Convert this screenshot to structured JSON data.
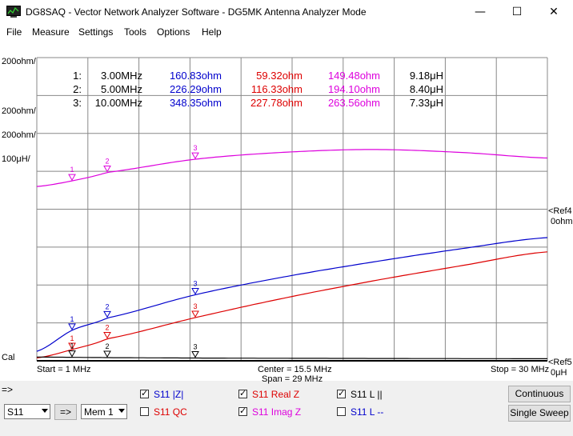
{
  "window": {
    "title": "DG8SAQ  -  Vector Network Analyzer Software - DG5MK Antenna Analyzer Mode",
    "icon": "network-analyzer-app-icon",
    "controls": {
      "minimize": "—",
      "maximize": "☐",
      "close": "✕"
    }
  },
  "menu": [
    "File",
    "Measure",
    "Settings",
    "Tools",
    "Options",
    "Help"
  ],
  "scale_labels": {
    "z_mag": "200ohm/",
    "real_z": "200ohm/",
    "imag_z": "200ohm/",
    "inductance": "100μH/",
    "cal": "Cal",
    "ref_top": "<Ref4",
    "ref_top_value": "0ohm",
    "ref_bottom": "<Ref5",
    "ref_bottom_value": "0μH"
  },
  "markers_table": [
    {
      "id": "1:",
      "freq": "3.00MHz",
      "z_mag": "160.83ohm",
      "real_z": "59.32ohm",
      "imag_z": "149.48ohm",
      "inductance": "9.18μH"
    },
    {
      "id": "2:",
      "freq": "5.00MHz",
      "z_mag": "226.29ohm",
      "real_z": "116.33ohm",
      "imag_z": "194.10ohm",
      "inductance": "8.40μH"
    },
    {
      "id": "3:",
      "freq": "10.00MHz",
      "z_mag": "348.35ohm",
      "real_z": "227.78ohm",
      "imag_z": "263.56ohm",
      "inductance": "7.33μH"
    }
  ],
  "marker_flags": [
    "1",
    "2",
    "3"
  ],
  "sweep": {
    "start": "Start = 1 MHz",
    "center": "Center = 15.5 MHz",
    "span": "Span = 29 MHz",
    "stop": "Stop = 30 MHz"
  },
  "prompt": "=>",
  "traces": [
    {
      "label": "S11  |Z|",
      "checked": true,
      "color": "#0000cc"
    },
    {
      "label": "S11  Real Z",
      "checked": true,
      "color": "#dd0000"
    },
    {
      "label": "S11  L ||",
      "checked": true,
      "color": "#000000"
    },
    {
      "label": "S11  QC",
      "checked": false,
      "color": "#dd0000"
    },
    {
      "label": "S11  Imag Z",
      "checked": true,
      "color": "#dd00dd"
    },
    {
      "label": "S11  L --",
      "checked": false,
      "color": "#0000cc"
    }
  ],
  "controls": {
    "port_select": "S11",
    "arrow_button": "=>",
    "memory_select": "Mem 1",
    "continuous_button": "Continuous",
    "single_sweep_button": "Single Sweep"
  },
  "colors": {
    "z_mag": "#0000cc",
    "real_z": "#dd0000",
    "imag_z": "#dd00dd",
    "inductance": "#000000",
    "grid": "#888888"
  },
  "chart_data": {
    "type": "line",
    "x_unit": "MHz",
    "xlim": [
      1,
      30
    ],
    "markers_mhz": [
      3,
      5,
      10
    ],
    "series": [
      {
        "name": "S11 |Z|",
        "scale_per_div": "200ohm",
        "x": [
          1,
          3,
          5,
          10,
          15,
          20,
          25,
          30
        ],
        "values": [
          50,
          160.83,
          226.29,
          348.35,
          442,
          520,
          590,
          650
        ]
      },
      {
        "name": "S11 Real Z",
        "scale_per_div": "200ohm",
        "x": [
          1,
          3,
          5,
          10,
          15,
          20,
          25,
          30
        ],
        "values": [
          15,
          59.32,
          116.33,
          227.78,
          330,
          420,
          500,
          575
        ]
      },
      {
        "name": "S11 Imag Z",
        "scale_per_div": "200ohm",
        "x": [
          1,
          3,
          5,
          10,
          15,
          20,
          25,
          30
        ],
        "values": [
          120,
          149.48,
          194.1,
          263.56,
          300,
          315,
          300,
          270
        ]
      },
      {
        "name": "S11 L ||",
        "scale_per_div": "100μH",
        "x": [
          1,
          3,
          5,
          10,
          15,
          20,
          25,
          30
        ],
        "values": [
          9.9,
          9.18,
          8.4,
          7.33,
          6.7,
          6.2,
          5.8,
          5.5
        ]
      }
    ]
  }
}
